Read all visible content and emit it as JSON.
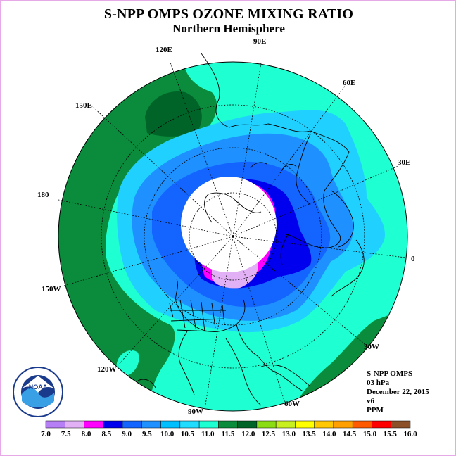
{
  "title": "S-NPP OMPS OZONE MIXING RATIO",
  "subtitle": "Northern Hemisphere",
  "longitude_labels": {
    "e120": "120E",
    "e90": "90E",
    "e60": "60E",
    "e150": "150E",
    "e30": "30E",
    "d180": "180",
    "d0": "0",
    "w150": "150W",
    "w30": "30W",
    "w120": "120W",
    "w60": "60W",
    "w90": "90W"
  },
  "info": {
    "instrument": "S-NPP OMPS",
    "level": "03 hPa",
    "date": "December 22, 2015",
    "version": "v6",
    "units": "PPM"
  },
  "logo": {
    "text": "NOAA",
    "icon": "noaa-logo-icon"
  },
  "colorbar": {
    "ticks": [
      "7.0",
      "7.5",
      "8.0",
      "8.5",
      "9.0",
      "9.5",
      "10.0",
      "10.5",
      "11.0",
      "11.5",
      "12.0",
      "12.5",
      "13.0",
      "13.5",
      "14.0",
      "14.5",
      "15.0",
      "15.5",
      "16.0"
    ],
    "colors": [
      "#b77ff5",
      "#e1b0f5",
      "#ff00ff",
      "#0000ee",
      "#1464ff",
      "#1e90ff",
      "#00bfff",
      "#20dcff",
      "#1effd2",
      "#0a8c3c",
      "#006428",
      "#8cdc14",
      "#c8f01e",
      "#ffff00",
      "#ffc800",
      "#ffa000",
      "#ff5a00",
      "#ff0000",
      "#8c5028"
    ]
  },
  "map_colors": {
    "c9_0": "#0000ee",
    "c8_5": "#ff00ff",
    "c8_0": "#e1b0f5",
    "c9_5": "#1464ff",
    "c10_0": "#1e90ff",
    "c10_5": "#20d0ff",
    "c11_0": "#1effd2",
    "c11_5": "#0a8c3c",
    "c12_0": "#006428"
  }
}
